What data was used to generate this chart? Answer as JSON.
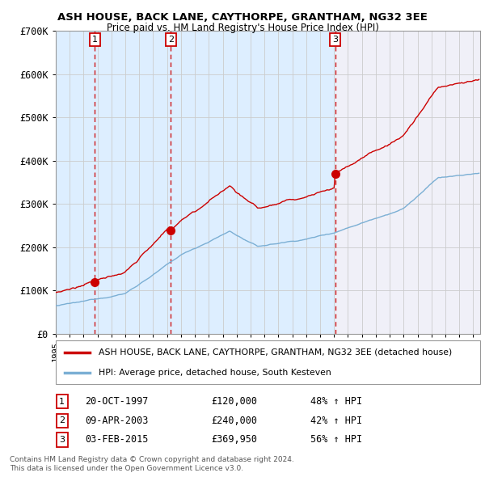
{
  "title": "ASH HOUSE, BACK LANE, CAYTHORPE, GRANTHAM, NG32 3EE",
  "subtitle": "Price paid vs. HM Land Registry's House Price Index (HPI)",
  "ylim": [
    0,
    700000
  ],
  "yticks": [
    0,
    100000,
    200000,
    300000,
    400000,
    500000,
    600000,
    700000
  ],
  "ytick_labels": [
    "£0",
    "£100K",
    "£200K",
    "£300K",
    "£400K",
    "£500K",
    "£600K",
    "£700K"
  ],
  "sale_prices": [
    120000,
    240000,
    369950
  ],
  "sale_labels": [
    "1",
    "2",
    "3"
  ],
  "sale_info": [
    {
      "label": "1",
      "date": "20-OCT-1997",
      "price": "£120,000",
      "hpi": "48% ↑ HPI"
    },
    {
      "label": "2",
      "date": "09-APR-2003",
      "price": "£240,000",
      "hpi": "42% ↑ HPI"
    },
    {
      "label": "3",
      "date": "03-FEB-2015",
      "price": "£369,950",
      "hpi": "56% ↑ HPI"
    }
  ],
  "legend_line1": "ASH HOUSE, BACK LANE, CAYTHORPE, GRANTHAM, NG32 3EE (detached house)",
  "legend_line2": "HPI: Average price, detached house, South Kesteven",
  "footer1": "Contains HM Land Registry data © Crown copyright and database right 2024.",
  "footer2": "This data is licensed under the Open Government Licence v3.0.",
  "price_line_color": "#cc0000",
  "hpi_line_color": "#7bafd4",
  "background_color": "#ffffff",
  "grid_color": "#cccccc",
  "shade_color": "#ddeeff",
  "dashed_line_color": "#cc0000",
  "xlim_start": 1995.0,
  "xlim_end": 2025.5,
  "sale_years_decimal": [
    1997.8,
    2003.27,
    2015.09
  ]
}
